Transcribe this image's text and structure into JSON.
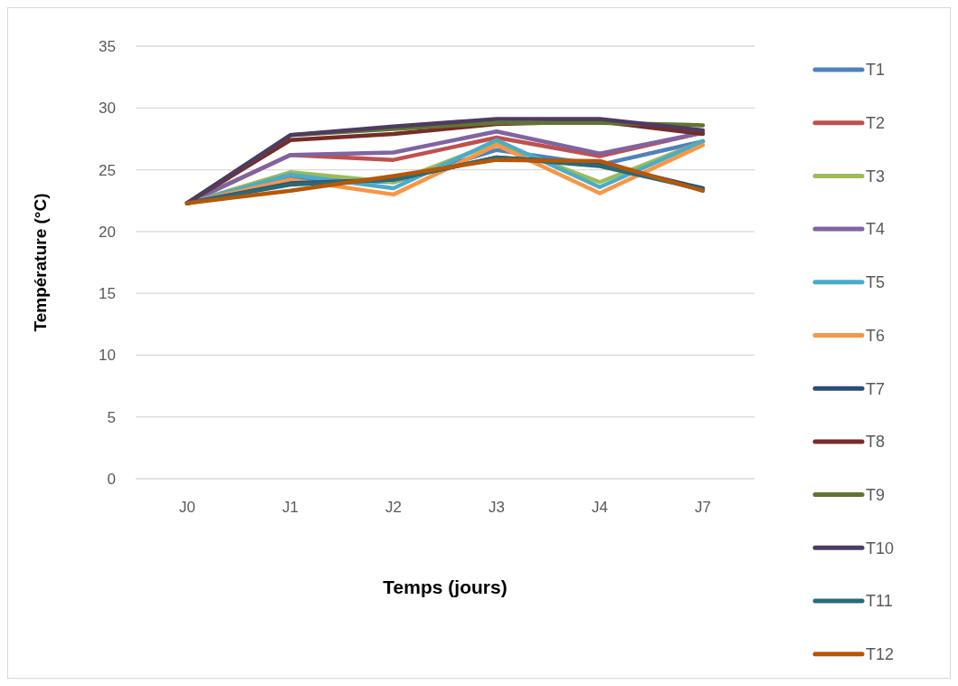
{
  "chart_data": {
    "type": "line",
    "xlabel": "Temps (jours)",
    "ylabel": "Température (°C)",
    "categories": [
      "J0",
      "J1",
      "J2",
      "J3",
      "J4",
      "J7"
    ],
    "ylim": [
      0,
      35
    ],
    "yticks": [
      0,
      5,
      10,
      15,
      20,
      25,
      30,
      35
    ],
    "grid": "y",
    "legend": "right",
    "marker": "none",
    "line_style": "solid",
    "series": [
      {
        "name": "T1",
        "color": "#4f81bd",
        "values": [
          22.3,
          24.3,
          24.0,
          26.6,
          25.4,
          27.3
        ]
      },
      {
        "name": "T2",
        "color": "#c0504d",
        "values": [
          22.3,
          26.2,
          25.8,
          27.6,
          26.1,
          28.0
        ]
      },
      {
        "name": "T3",
        "color": "#9bbb59",
        "values": [
          22.3,
          24.8,
          24.0,
          27.2,
          24.0,
          27.3
        ]
      },
      {
        "name": "T4",
        "color": "#8064a2",
        "values": [
          22.3,
          26.2,
          26.4,
          28.1,
          26.3,
          28.0
        ]
      },
      {
        "name": "T5",
        "color": "#4bacc6",
        "values": [
          22.3,
          24.6,
          23.5,
          27.4,
          23.6,
          27.3
        ]
      },
      {
        "name": "T6",
        "color": "#f79646",
        "values": [
          22.3,
          24.2,
          23.0,
          27.0,
          23.1,
          27.0
        ]
      },
      {
        "name": "T7",
        "color": "#2c4d75",
        "values": [
          22.3,
          23.9,
          24.2,
          26.0,
          25.5,
          23.5
        ]
      },
      {
        "name": "T8",
        "color": "#772c2a",
        "values": [
          22.3,
          27.4,
          27.9,
          28.7,
          28.9,
          27.9
        ]
      },
      {
        "name": "T9",
        "color": "#5f7530",
        "values": [
          22.3,
          27.8,
          28.3,
          28.8,
          28.8,
          28.6
        ]
      },
      {
        "name": "T10",
        "color": "#4d3b62",
        "values": [
          22.3,
          27.8,
          28.5,
          29.1,
          29.1,
          28.2
        ]
      },
      {
        "name": "T11",
        "color": "#276a7c",
        "values": [
          22.3,
          23.8,
          24.2,
          26.0,
          25.3,
          23.4
        ]
      },
      {
        "name": "T12",
        "color": "#b65708",
        "values": [
          22.3,
          23.3,
          24.5,
          25.8,
          25.7,
          23.3
        ]
      }
    ]
  }
}
